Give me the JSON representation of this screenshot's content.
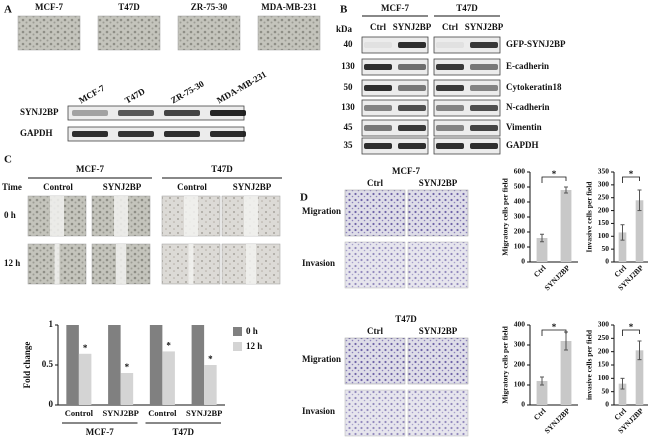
{
  "panel_a": {
    "label": "A",
    "cell_lines": [
      "MCF-7",
      "T47D",
      "ZR-75-30",
      "MDA-MB-231"
    ],
    "blot_rows": [
      "SYNJ2BP",
      "GAPDH"
    ]
  },
  "panel_b": {
    "label": "B",
    "kda_label": "kDa",
    "groups": [
      "MCF-7",
      "T47D"
    ],
    "lanes": [
      "Ctrl",
      "SYNJ2BP"
    ],
    "rows": [
      {
        "kda": 40,
        "protein": "GFP-SYNJ2BP"
      },
      {
        "kda": 130,
        "protein": "E-cadherin"
      },
      {
        "kda": 50,
        "protein": "Cytokeratin18"
      },
      {
        "kda": 130,
        "protein": "N-cadherin"
      },
      {
        "kda": 45,
        "protein": "Vimentin"
      },
      {
        "kda": 35,
        "protein": "GAPDH"
      }
    ]
  },
  "panel_c": {
    "label": "C",
    "time_label": "Time",
    "groups": [
      "MCF-7",
      "T47D"
    ],
    "conditions": [
      "Control",
      "SYNJ2BP"
    ],
    "times": [
      "0 h",
      "12 h"
    ]
  },
  "panel_d": {
    "label": "D",
    "groups": [
      "MCF-7",
      "T47D"
    ],
    "lanes": [
      "Ctrl",
      "SYNJ2BP"
    ],
    "rows": [
      "Migration",
      "Invasion"
    ]
  },
  "chart_data": [
    {
      "type": "bar",
      "ylabel": "Fold change",
      "categories": [
        "Control",
        "SYNJ2BP",
        "Control",
        "SYNJ2BP"
      ],
      "group_labels": [
        "MCF-7",
        "T47D"
      ],
      "series": [
        {
          "name": "0 h",
          "color": "#808080",
          "values": [
            1,
            1,
            1,
            1
          ]
        },
        {
          "name": "12 h",
          "color": "#d4d4d4",
          "values": [
            0.64,
            0.4,
            0.67,
            0.5
          ],
          "annotations": [
            "*",
            "*",
            "*",
            "*"
          ]
        }
      ],
      "ylim": [
        0,
        1
      ],
      "yticks": [
        0,
        0.5,
        1
      ]
    },
    {
      "type": "bar",
      "ylabel": "Migratory cells per field",
      "categories": [
        "Ctrl",
        "SYNJ2BP"
      ],
      "values": [
        160,
        480
      ],
      "errors": [
        25,
        20
      ],
      "color": "#c8c8c8",
      "ylim": [
        0,
        600
      ],
      "yticks": [
        0,
        100,
        200,
        300,
        400,
        500,
        600
      ],
      "annotation": "*"
    },
    {
      "type": "bar",
      "ylabel": "Invasive cells per field",
      "categories": [
        "Ctrl",
        "SYNJ2BP"
      ],
      "values": [
        115,
        240
      ],
      "errors": [
        30,
        40
      ],
      "color": "#c8c8c8",
      "ylim": [
        0,
        350
      ],
      "yticks": [
        0,
        50,
        100,
        150,
        200,
        250,
        300,
        350
      ],
      "annotation": "*"
    },
    {
      "type": "bar",
      "ylabel": "Migratory cells per field",
      "categories": [
        "Ctrl",
        "SYNJ2BP"
      ],
      "values": [
        120,
        320
      ],
      "errors": [
        20,
        45
      ],
      "color": "#c8c8c8",
      "ylim": [
        0,
        400
      ],
      "yticks": [
        0,
        100,
        200,
        300,
        400
      ],
      "annotation": "*"
    },
    {
      "type": "bar",
      "ylabel": "invasive cells per field",
      "categories": [
        "Ctrl",
        "SYNJ2BP"
      ],
      "values": [
        80,
        205
      ],
      "errors": [
        20,
        35
      ],
      "color": "#c8c8c8",
      "ylim": [
        0,
        300
      ],
      "yticks": [
        0,
        50,
        100,
        150,
        200,
        250,
        300
      ],
      "annotation": "*"
    }
  ]
}
